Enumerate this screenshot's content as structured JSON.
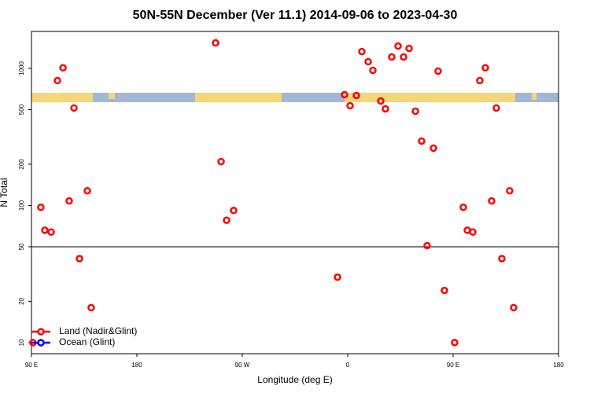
{
  "chart_data": {
    "type": "scatter",
    "title": "50N-55N December (Ver 11.1)   2014-09-06 to 2023-04-30",
    "x_label": "Longitude (deg E)",
    "y_label": "N Total",
    "xlim": [
      90,
      540
    ],
    "xticks": [
      {
        "value": 90,
        "label": "90 E"
      },
      {
        "value": 180,
        "label": "180"
      },
      {
        "value": 270,
        "label": "90 W"
      },
      {
        "value": 360,
        "label": "0"
      },
      {
        "value": 450,
        "label": "90 E"
      },
      {
        "value": 540,
        "label": "180"
      }
    ],
    "ylim": [
      8.3,
      1860
    ],
    "yscale": "log",
    "yticks": [
      10,
      20,
      50,
      100,
      200,
      500,
      1000
    ],
    "hline": 50,
    "legend": "bottom-left",
    "series": [
      {
        "name": "Land (Nadir&Glint)",
        "color": "#ff0000",
        "x": [
          91.3,
          98,
          101.4,
          106.8,
          112.2,
          116.9,
          122.2,
          126.3,
          131,
          137.7,
          141,
          247.2,
          251.9,
          256.6,
          262.6,
          351.3,
          357.3,
          362,
          367.4,
          372.1,
          377.5,
          381.5,
          388.2,
          392.2,
          397.6,
          403,
          407.7,
          412.4,
          417.8,
          423.1,
          427.8,
          433.2,
          437.2,
          442.6,
          451.3,
          458.7,
          462.1,
          466.8,
          472.8,
          477.5,
          482.9,
          486.9,
          491.6,
          498.3,
          501.7
        ],
        "values": [
          10,
          97,
          66,
          64,
          815,
          1010,
          108,
          514,
          41,
          128,
          18,
          1535,
          209,
          78,
          92,
          30,
          643,
          534,
          634,
          1327,
          1119,
          968,
          578,
          507,
          1211,
          1455,
          1211,
          1399,
          487,
          295,
          51,
          262,
          955,
          24,
          10,
          97,
          66,
          64,
          815,
          1010,
          108,
          514,
          41,
          128,
          18
        ]
      },
      {
        "name": "Ocean (Glint)",
        "color": "#0000ff",
        "x": [],
        "values": []
      }
    ]
  }
}
